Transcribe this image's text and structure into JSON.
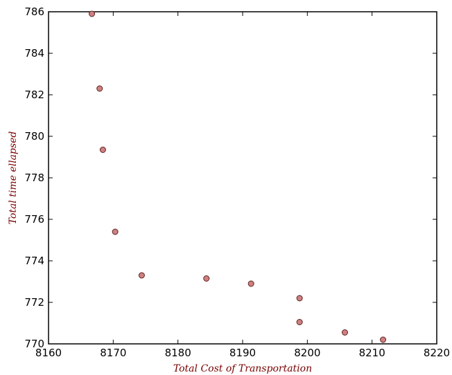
{
  "chart_data": {
    "type": "scatter",
    "title": "",
    "xlabel": "Total Cost of Transportation",
    "ylabel": "Total time ellapsed",
    "xlim": [
      8160,
      8220
    ],
    "ylim": [
      770,
      786
    ],
    "x_ticks": [
      "8160",
      "8170",
      "8180",
      "8190",
      "8200",
      "8210",
      "8220"
    ],
    "y_ticks": [
      "770",
      "772",
      "774",
      "776",
      "778",
      "780",
      "782",
      "784",
      "786"
    ],
    "grid": false,
    "legend": "none",
    "marker_color": "#d08080",
    "series": [
      {
        "points": [
          {
            "x": 8166.7,
            "y": 785.9
          },
          {
            "x": 8167.9,
            "y": 782.3
          },
          {
            "x": 8168.4,
            "y": 779.35
          },
          {
            "x": 8170.3,
            "y": 775.4
          },
          {
            "x": 8174.4,
            "y": 773.3
          },
          {
            "x": 8184.4,
            "y": 773.15
          },
          {
            "x": 8191.3,
            "y": 772.9
          },
          {
            "x": 8198.8,
            "y": 772.2
          },
          {
            "x": 8198.8,
            "y": 771.05
          },
          {
            "x": 8205.8,
            "y": 770.55
          },
          {
            "x": 8211.7,
            "y": 770.2
          }
        ]
      }
    ]
  }
}
